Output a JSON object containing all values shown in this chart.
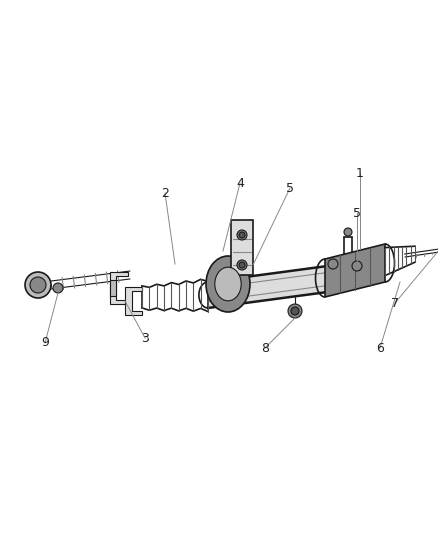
{
  "bg_color": "#ffffff",
  "line_color": "#1a1a1a",
  "gray_dark": "#555555",
  "gray_mid": "#888888",
  "gray_light": "#bbbbbb",
  "gray_lighter": "#dddddd",
  "label_color": "#222222",
  "callout_color": "#888888",
  "figsize": [
    4.39,
    5.33
  ],
  "dpi": 100,
  "label_fs": 9
}
